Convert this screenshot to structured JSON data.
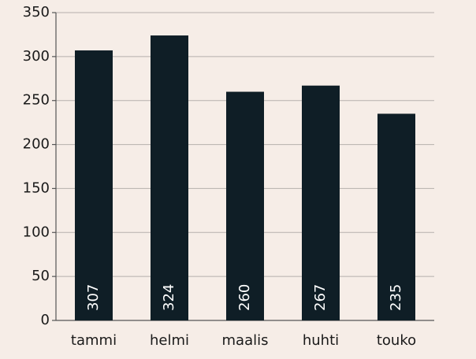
{
  "chart_data": {
    "type": "bar",
    "categories": [
      "tammi",
      "helmi",
      "maalis",
      "huhti",
      "touko"
    ],
    "values": [
      307,
      324,
      260,
      267,
      235
    ],
    "color": "#0f1e26",
    "ylim": [
      0,
      350
    ],
    "yticks": [
      0,
      50,
      100,
      150,
      200,
      250,
      300,
      350
    ],
    "grid": true
  }
}
